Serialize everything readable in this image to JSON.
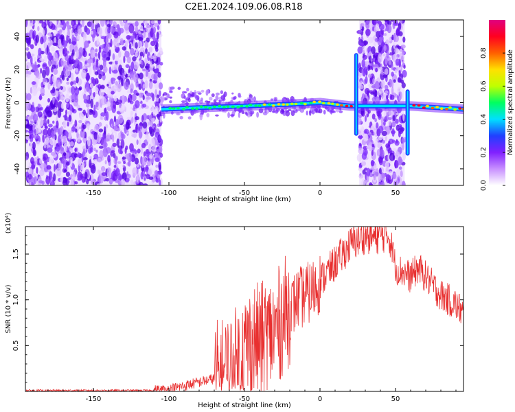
{
  "title": "C2E1.2024.109.06.08.R18",
  "chart_data": [
    {
      "type": "heatmap",
      "xlabel": "Height of straight line (km)",
      "ylabel": "Frequency (Hz)",
      "xlim": [
        -195,
        95
      ],
      "ylim": [
        -50,
        50
      ],
      "xticks": [
        -150,
        -100,
        -50,
        0,
        50
      ],
      "yticks": [
        -40,
        -20,
        0,
        20,
        40
      ],
      "colorbar": {
        "label": "Normalized spectral amplitude",
        "range": [
          0,
          1
        ],
        "ticks": [
          "0.0",
          "0.2",
          "0.4",
          "0.6",
          "0.8"
        ],
        "colors": [
          "#ffffff",
          "#c890ff",
          "#8020ff",
          "#2040ff",
          "#00e0ff",
          "#00ff60",
          "#c0ff00",
          "#ffe000",
          "#ff6000",
          "#ff0020",
          "#e00080"
        ]
      },
      "noise_regions_km": [
        [
          -195,
          -105
        ],
        [
          26,
          56
        ]
      ],
      "ridge": [
        {
          "x": -105,
          "y": -4
        },
        {
          "x": -80,
          "y": -3
        },
        {
          "x": -50,
          "y": -2
        },
        {
          "x": -20,
          "y": -1
        },
        {
          "x": 0,
          "y": 0
        },
        {
          "x": 20,
          "y": -2
        },
        {
          "x": 60,
          "y": -2
        },
        {
          "x": 95,
          "y": -4
        }
      ],
      "spikes_km": [
        24,
        58
      ]
    },
    {
      "type": "line",
      "title": "",
      "xlabel": "Height of straight line (km)",
      "ylabel": "SNR (10 * v/v)",
      "scale_label": "(x10⁴)",
      "xlim": [
        -195,
        95
      ],
      "ylim": [
        0,
        1.8
      ],
      "xticks": [
        -150,
        -100,
        -50,
        0,
        50
      ],
      "yticks": [
        "0.5",
        "1.0",
        "1.5"
      ],
      "color": "#e83030",
      "series": [
        {
          "x": [
            -195,
            -180,
            -165,
            -150,
            -135,
            -120,
            -110,
            -100,
            -95,
            -90,
            -85,
            -80,
            -75,
            -70,
            -65,
            -60,
            -55,
            -50,
            -45,
            -40,
            -35,
            -30,
            -25,
            -20,
            -15,
            -10,
            -5,
            0,
            5,
            10,
            15,
            20,
            25,
            30,
            35,
            40,
            45,
            48,
            50,
            55,
            60,
            65,
            70,
            75,
            80,
            85,
            90,
            95
          ],
          "values": [
            0.01,
            0.01,
            0.01,
            0.01,
            0.01,
            0.01,
            0.01,
            0.02,
            0.04,
            0.06,
            0.08,
            0.1,
            0.12,
            0.14,
            0.16,
            0.22,
            0.3,
            0.45,
            0.55,
            0.55,
            0.6,
            0.65,
            0.8,
            0.9,
            1.0,
            1.05,
            1.1,
            1.2,
            1.3,
            1.4,
            1.5,
            1.6,
            1.65,
            1.7,
            1.68,
            1.7,
            1.72,
            1.55,
            1.35,
            1.3,
            1.25,
            1.35,
            1.25,
            1.15,
            1.05,
            1.0,
            0.95,
            0.85
          ]
        }
      ],
      "noise_amplitude": [
        {
          "from": -195,
          "to": -110,
          "amp": 0.01
        },
        {
          "from": -110,
          "to": -70,
          "amp": 0.06
        },
        {
          "from": -70,
          "to": -20,
          "amp": 0.65
        },
        {
          "from": -20,
          "to": 0,
          "amp": 0.35
        },
        {
          "from": 0,
          "to": 45,
          "amp": 0.2
        },
        {
          "from": 45,
          "to": 95,
          "amp": 0.18
        }
      ]
    }
  ]
}
